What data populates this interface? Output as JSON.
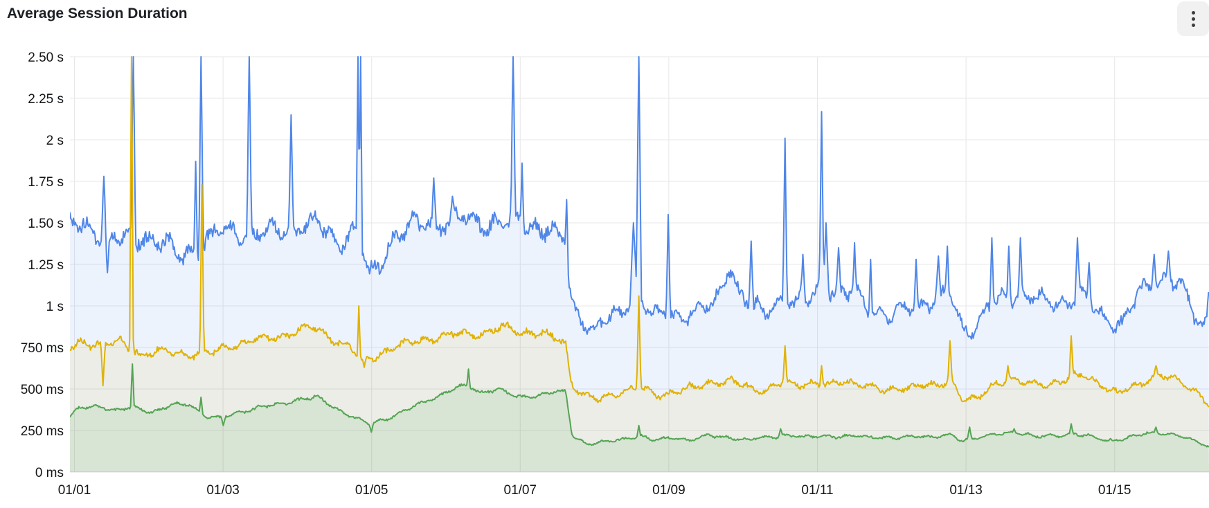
{
  "panel": {
    "title": "Average Session Duration",
    "menu_icon": "kebab-vertical-icon"
  },
  "chart_data": {
    "type": "line",
    "title": "Average Session Duration",
    "legend": "none",
    "grid": true,
    "unit": "seconds",
    "x_axis": {
      "tick_labels": [
        "01/01",
        "01/03",
        "01/05",
        "01/07",
        "01/09",
        "01/11",
        "01/13",
        "01/15"
      ],
      "tick_days": [
        0,
        2,
        4,
        6,
        8,
        10,
        12,
        14
      ],
      "domain_days": [
        -0.06,
        15.27
      ]
    },
    "y_axis": {
      "tick_labels": [
        "0 ms",
        "250 ms",
        "500 ms",
        "750 ms",
        "1 s",
        "1.25 s",
        "1.50 s",
        "1.75 s",
        "2 s",
        "2.25 s",
        "2.50 s"
      ],
      "tick_values_seconds": [
        0,
        0.25,
        0.5,
        0.75,
        1,
        1.25,
        1.5,
        1.75,
        2,
        2.25,
        2.5
      ],
      "range_seconds": [
        0,
        2.5
      ]
    },
    "colors": {
      "grid": "#e7e7e9",
      "axis": "#d8d8db",
      "text": "#141619"
    },
    "series": [
      {
        "name": "series-blue",
        "color": "#4f86e8",
        "fill": "rgba(79,134,232,0.10)",
        "noise_amp": 0.035,
        "base": [
          [
            -0.06,
            1.49
          ],
          [
            0.2,
            1.46
          ],
          [
            0.5,
            1.4
          ],
          [
            0.9,
            1.41
          ],
          [
            1.2,
            1.38
          ],
          [
            1.45,
            1.29
          ],
          [
            1.6,
            1.33
          ],
          [
            1.9,
            1.43
          ],
          [
            2.2,
            1.45
          ],
          [
            2.5,
            1.44
          ],
          [
            2.8,
            1.47
          ],
          [
            3.1,
            1.48
          ],
          [
            3.3,
            1.5
          ],
          [
            3.55,
            1.37
          ],
          [
            3.75,
            1.46
          ],
          [
            3.88,
            1.33
          ],
          [
            3.97,
            1.18
          ],
          [
            4.1,
            1.26
          ],
          [
            4.3,
            1.42
          ],
          [
            4.6,
            1.49
          ],
          [
            4.9,
            1.5
          ],
          [
            5.2,
            1.52
          ],
          [
            5.5,
            1.51
          ],
          [
            5.8,
            1.49
          ],
          [
            6.1,
            1.5
          ],
          [
            6.35,
            1.46
          ],
          [
            6.5,
            1.39
          ],
          [
            6.61,
            1.4
          ],
          [
            6.68,
            1.04
          ],
          [
            6.8,
            0.94
          ],
          [
            7.0,
            0.85
          ],
          [
            7.15,
            0.91
          ],
          [
            7.35,
            0.96
          ],
          [
            7.55,
            1.06
          ],
          [
            7.65,
            1.0
          ],
          [
            7.8,
            0.94
          ],
          [
            8.0,
            0.97
          ],
          [
            8.2,
            0.94
          ],
          [
            8.45,
            0.97
          ],
          [
            8.65,
            1.05
          ],
          [
            8.8,
            1.26
          ],
          [
            8.95,
            1.06
          ],
          [
            9.1,
            1.0
          ],
          [
            9.3,
            0.97
          ],
          [
            9.5,
            1.04
          ],
          [
            9.7,
            1.0
          ],
          [
            9.9,
            1.06
          ],
          [
            10.05,
            1.12
          ],
          [
            10.2,
            1.08
          ],
          [
            10.35,
            1.05
          ],
          [
            10.5,
            1.1
          ],
          [
            10.65,
            1.02
          ],
          [
            10.8,
            0.96
          ],
          [
            11.0,
            0.92
          ],
          [
            11.2,
            1.0
          ],
          [
            11.4,
            1.0
          ],
          [
            11.6,
            1.04
          ],
          [
            11.8,
            1.06
          ],
          [
            11.95,
            0.88
          ],
          [
            12.1,
            0.85
          ],
          [
            12.3,
            0.98
          ],
          [
            12.5,
            1.05
          ],
          [
            12.7,
            1.06
          ],
          [
            12.9,
            1.04
          ],
          [
            13.1,
            1.03
          ],
          [
            13.35,
            1.02
          ],
          [
            13.55,
            1.06
          ],
          [
            13.75,
            0.98
          ],
          [
            13.95,
            0.9
          ],
          [
            14.1,
            0.89
          ],
          [
            14.3,
            1.06
          ],
          [
            14.5,
            1.14
          ],
          [
            14.7,
            1.16
          ],
          [
            14.9,
            1.12
          ],
          [
            15.05,
            0.96
          ],
          [
            15.18,
            0.89
          ],
          [
            15.27,
            0.92
          ]
        ],
        "spikes": [
          [
            0.4,
            1.78,
            0.035
          ],
          [
            0.44,
            1.2,
            0.03
          ],
          [
            0.795,
            2.62,
            0.03
          ],
          [
            1.63,
            1.87,
            0.025
          ],
          [
            1.7,
            2.62,
            0.03
          ],
          [
            2.35,
            2.62,
            0.03
          ],
          [
            2.91,
            2.15,
            0.03
          ],
          [
            3.81,
            2.62,
            0.022
          ],
          [
            3.85,
            2.62,
            0.022
          ],
          [
            4.84,
            1.77,
            0.03
          ],
          [
            5.09,
            1.66,
            0.03
          ],
          [
            5.91,
            2.62,
            0.03
          ],
          [
            6.02,
            1.86,
            0.025
          ],
          [
            6.62,
            1.64,
            0.025
          ],
          [
            7.52,
            1.5,
            0.05
          ],
          [
            7.6,
            2.62,
            0.035
          ],
          [
            7.99,
            1.55,
            0.03
          ],
          [
            9.11,
            1.39,
            0.03
          ],
          [
            9.56,
            2.01,
            0.03
          ],
          [
            9.8,
            1.31,
            0.03
          ],
          [
            10.06,
            2.17,
            0.03
          ],
          [
            10.12,
            1.5,
            0.04
          ],
          [
            10.28,
            1.35,
            0.03
          ],
          [
            10.5,
            1.38,
            0.025
          ],
          [
            10.72,
            1.28,
            0.025
          ],
          [
            11.33,
            1.28,
            0.03
          ],
          [
            11.63,
            1.3,
            0.03
          ],
          [
            11.75,
            1.36,
            0.03
          ],
          [
            12.35,
            1.41,
            0.03
          ],
          [
            12.58,
            1.36,
            0.03
          ],
          [
            12.73,
            1.41,
            0.03
          ],
          [
            13.5,
            1.41,
            0.035
          ],
          [
            13.66,
            1.26,
            0.03
          ],
          [
            14.53,
            1.31,
            0.035
          ],
          [
            14.72,
            1.33,
            0.035
          ],
          [
            15.26,
            1.08,
            0.03
          ]
        ]
      },
      {
        "name": "series-yellow",
        "color": "#e0b204",
        "fill": "rgba(224,178,4,0.09)",
        "noise_amp": 0.02,
        "base": [
          [
            -0.06,
            0.74
          ],
          [
            0.1,
            0.78
          ],
          [
            0.35,
            0.77
          ],
          [
            0.6,
            0.78
          ],
          [
            0.9,
            0.71
          ],
          [
            1.2,
            0.73
          ],
          [
            1.5,
            0.71
          ],
          [
            1.8,
            0.71
          ],
          [
            2.1,
            0.76
          ],
          [
            2.4,
            0.79
          ],
          [
            2.7,
            0.81
          ],
          [
            3.0,
            0.85
          ],
          [
            3.2,
            0.87
          ],
          [
            3.45,
            0.81
          ],
          [
            3.7,
            0.75
          ],
          [
            3.88,
            0.67
          ],
          [
            4.05,
            0.7
          ],
          [
            4.3,
            0.75
          ],
          [
            4.6,
            0.79
          ],
          [
            4.9,
            0.81
          ],
          [
            5.2,
            0.84
          ],
          [
            5.5,
            0.83
          ],
          [
            5.75,
            0.87
          ],
          [
            6.0,
            0.85
          ],
          [
            6.3,
            0.83
          ],
          [
            6.55,
            0.79
          ],
          [
            6.61,
            0.79
          ],
          [
            6.68,
            0.54
          ],
          [
            6.85,
            0.47
          ],
          [
            7.05,
            0.43
          ],
          [
            7.25,
            0.47
          ],
          [
            7.5,
            0.5
          ],
          [
            7.65,
            0.5
          ],
          [
            7.85,
            0.46
          ],
          [
            8.1,
            0.49
          ],
          [
            8.35,
            0.51
          ],
          [
            8.6,
            0.54
          ],
          [
            8.85,
            0.55
          ],
          [
            9.1,
            0.5
          ],
          [
            9.3,
            0.49
          ],
          [
            9.5,
            0.54
          ],
          [
            9.7,
            0.52
          ],
          [
            9.95,
            0.54
          ],
          [
            10.15,
            0.52
          ],
          [
            10.4,
            0.54
          ],
          [
            10.65,
            0.53
          ],
          [
            10.9,
            0.48
          ],
          [
            11.15,
            0.51
          ],
          [
            11.4,
            0.53
          ],
          [
            11.6,
            0.51
          ],
          [
            11.8,
            0.55
          ],
          [
            11.95,
            0.45
          ],
          [
            12.15,
            0.43
          ],
          [
            12.35,
            0.52
          ],
          [
            12.6,
            0.56
          ],
          [
            12.85,
            0.53
          ],
          [
            13.1,
            0.53
          ],
          [
            13.35,
            0.56
          ],
          [
            13.6,
            0.58
          ],
          [
            13.85,
            0.52
          ],
          [
            14.05,
            0.47
          ],
          [
            14.3,
            0.52
          ],
          [
            14.55,
            0.58
          ],
          [
            14.8,
            0.56
          ],
          [
            15.0,
            0.51
          ],
          [
            15.15,
            0.47
          ],
          [
            15.27,
            0.41
          ]
        ],
        "spikes": [
          [
            0.38,
            0.52,
            0.03
          ],
          [
            0.77,
            2.62,
            0.025
          ],
          [
            1.72,
            1.73,
            0.028
          ],
          [
            3.83,
            1.0,
            0.022
          ],
          [
            3.9,
            0.63,
            0.03
          ],
          [
            7.6,
            1.06,
            0.03
          ],
          [
            9.56,
            0.76,
            0.028
          ],
          [
            10.06,
            0.64,
            0.025
          ],
          [
            11.78,
            0.79,
            0.03
          ],
          [
            12.56,
            0.64,
            0.03
          ],
          [
            13.41,
            0.82,
            0.028
          ],
          [
            14.55,
            0.64,
            0.03
          ]
        ]
      },
      {
        "name": "series-green",
        "color": "#54a453",
        "fill": "rgba(84,164,83,0.12)",
        "noise_amp": 0.011,
        "base": [
          [
            -0.06,
            0.33
          ],
          [
            0.05,
            0.38
          ],
          [
            0.3,
            0.4
          ],
          [
            0.55,
            0.37
          ],
          [
            0.8,
            0.39
          ],
          [
            1.05,
            0.36
          ],
          [
            1.3,
            0.4
          ],
          [
            1.55,
            0.41
          ],
          [
            1.75,
            0.34
          ],
          [
            1.95,
            0.32
          ],
          [
            2.2,
            0.36
          ],
          [
            2.5,
            0.39
          ],
          [
            2.8,
            0.41
          ],
          [
            3.05,
            0.44
          ],
          [
            3.25,
            0.45
          ],
          [
            3.5,
            0.39
          ],
          [
            3.75,
            0.33
          ],
          [
            3.95,
            0.29
          ],
          [
            4.2,
            0.32
          ],
          [
            4.5,
            0.38
          ],
          [
            4.8,
            0.44
          ],
          [
            5.1,
            0.5
          ],
          [
            5.3,
            0.52
          ],
          [
            5.45,
            0.48
          ],
          [
            5.7,
            0.5
          ],
          [
            5.95,
            0.45
          ],
          [
            6.2,
            0.46
          ],
          [
            6.45,
            0.48
          ],
          [
            6.61,
            0.48
          ],
          [
            6.7,
            0.22
          ],
          [
            6.9,
            0.17
          ],
          [
            7.15,
            0.18
          ],
          [
            7.4,
            0.2
          ],
          [
            7.6,
            0.22
          ],
          [
            7.8,
            0.19
          ],
          [
            8.05,
            0.21
          ],
          [
            8.3,
            0.19
          ],
          [
            8.55,
            0.22
          ],
          [
            8.8,
            0.21
          ],
          [
            9.05,
            0.19
          ],
          [
            9.3,
            0.21
          ],
          [
            9.55,
            0.22
          ],
          [
            9.8,
            0.21
          ],
          [
            10.05,
            0.22
          ],
          [
            10.3,
            0.21
          ],
          [
            10.55,
            0.22
          ],
          [
            10.8,
            0.21
          ],
          [
            11.05,
            0.2
          ],
          [
            11.3,
            0.22
          ],
          [
            11.55,
            0.21
          ],
          [
            11.8,
            0.22
          ],
          [
            11.95,
            0.19
          ],
          [
            12.2,
            0.21
          ],
          [
            12.45,
            0.23
          ],
          [
            12.7,
            0.24
          ],
          [
            12.95,
            0.21
          ],
          [
            13.2,
            0.22
          ],
          [
            13.45,
            0.23
          ],
          [
            13.7,
            0.21
          ],
          [
            13.9,
            0.19
          ],
          [
            14.15,
            0.2
          ],
          [
            14.4,
            0.23
          ],
          [
            14.6,
            0.24
          ],
          [
            14.85,
            0.22
          ],
          [
            15.05,
            0.19
          ],
          [
            15.2,
            0.17
          ],
          [
            15.27,
            0.15
          ]
        ],
        "spikes": [
          [
            0.785,
            0.65,
            0.025
          ],
          [
            1.7,
            0.45,
            0.025
          ],
          [
            2.0,
            0.28,
            0.03
          ],
          [
            4.0,
            0.24,
            0.03
          ],
          [
            5.3,
            0.62,
            0.02
          ],
          [
            7.6,
            0.28,
            0.025
          ],
          [
            9.5,
            0.26,
            0.03
          ],
          [
            12.05,
            0.27,
            0.03
          ],
          [
            12.65,
            0.26,
            0.025
          ],
          [
            13.42,
            0.29,
            0.025
          ],
          [
            14.55,
            0.27,
            0.028
          ]
        ]
      }
    ]
  }
}
